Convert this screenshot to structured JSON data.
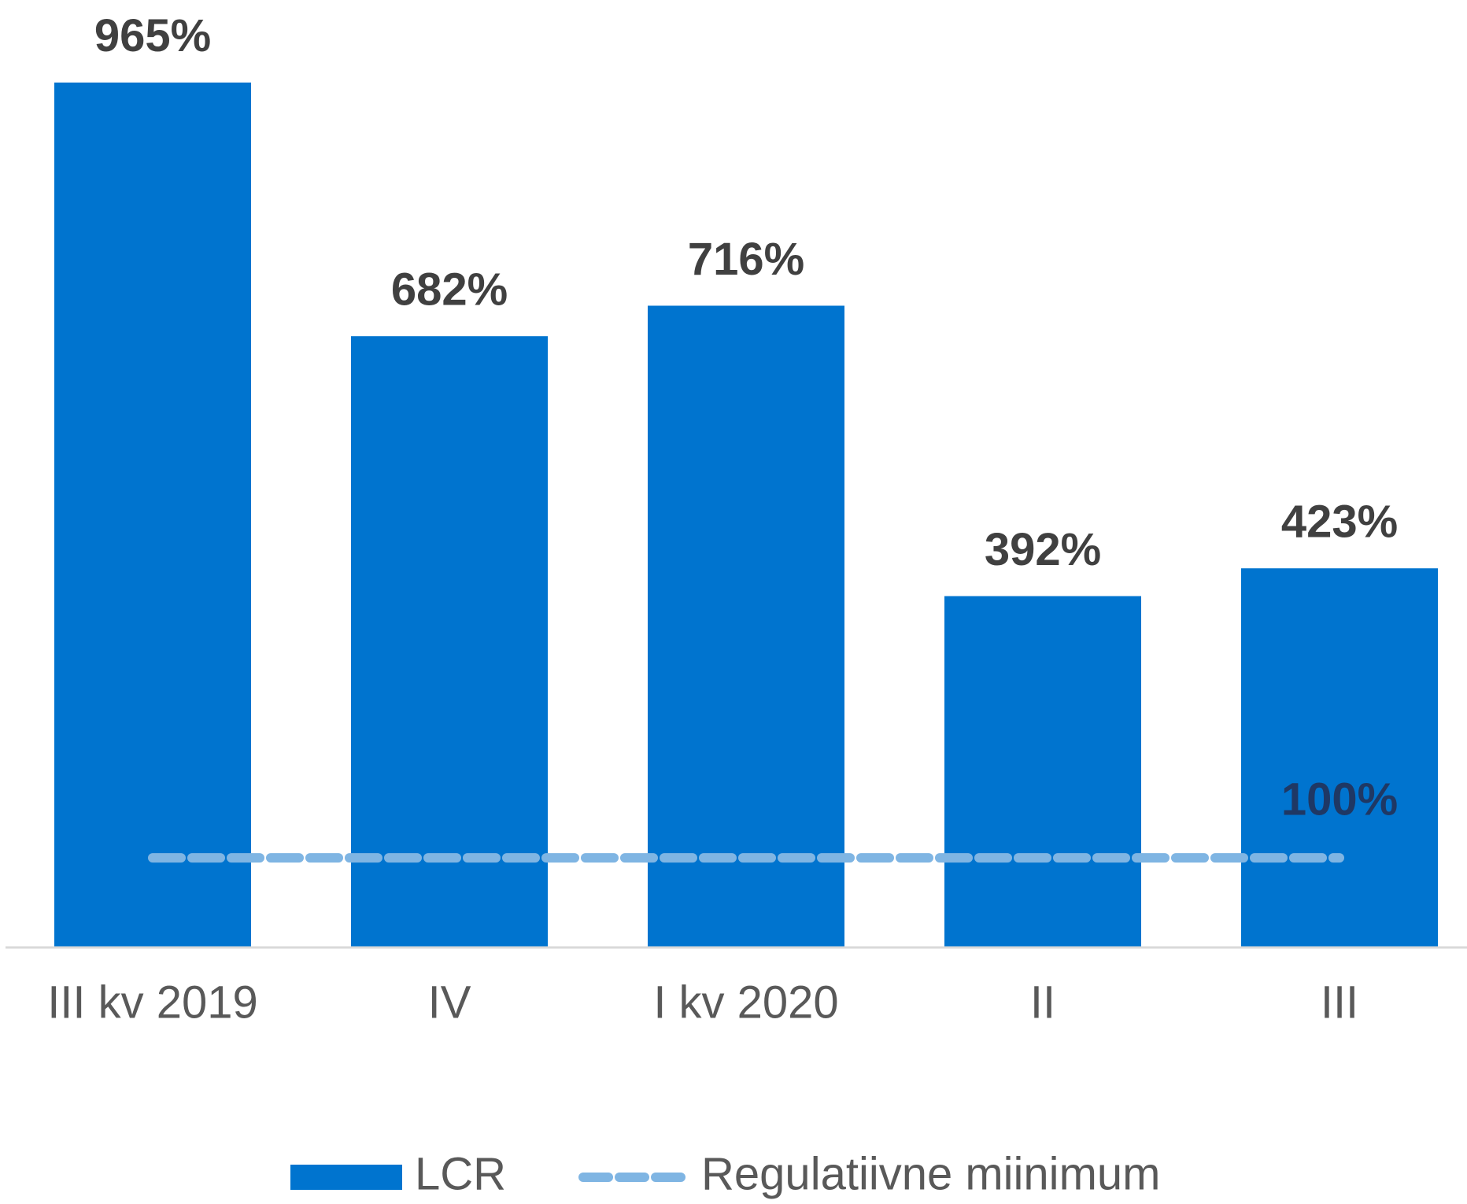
{
  "chart_data": {
    "type": "bar",
    "categories": [
      "III kv 2019",
      "IV",
      "I kv 2020",
      "II",
      "III"
    ],
    "series": [
      {
        "name": "LCR",
        "type": "bar",
        "color": "#0074cf",
        "values": [
          965,
          682,
          716,
          392,
          423
        ],
        "value_labels": [
          "965%",
          "682%",
          "716%",
          "392%",
          "423%"
        ]
      },
      {
        "name": "Regulatiivne miinimum",
        "type": "line",
        "color": "#7fb5e3",
        "values": [
          100,
          100,
          100,
          100,
          100
        ],
        "value_labels": [
          null,
          null,
          null,
          null,
          "100%"
        ]
      }
    ],
    "ylim": [
      0,
      1000
    ],
    "grid": false,
    "legend": "bottom"
  }
}
